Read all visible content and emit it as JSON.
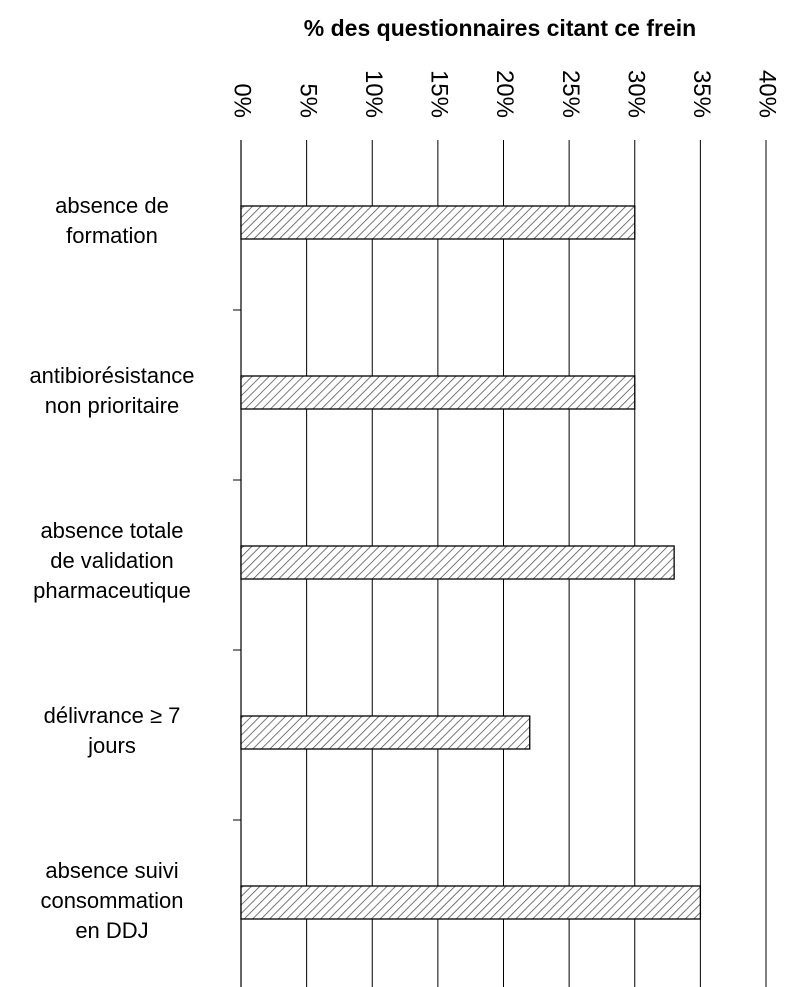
{
  "chart_data": {
    "type": "barh",
    "title": "% des questionnaires citant ce frein",
    "categories": [
      "absence de\nformation",
      "antibiorésistance\nnon prioritaire",
      "absence totale\nde validation\npharmaceutique",
      "délivrance ≥ 7\njours",
      "absence suivi\nconsommation\nen DDJ"
    ],
    "values": [
      30,
      30,
      33,
      22,
      35
    ],
    "color": "#000000",
    "xlim": [
      0,
      40
    ],
    "xticks": [
      {
        "value": 0,
        "label": "0%"
      },
      {
        "value": 5,
        "label": "5%"
      },
      {
        "value": 10,
        "label": "10%"
      },
      {
        "value": 15,
        "label": "15%"
      },
      {
        "value": 20,
        "label": "20%"
      },
      {
        "value": 25,
        "label": "25%"
      },
      {
        "value": 30,
        "label": "30%"
      },
      {
        "value": 35,
        "label": "35%"
      },
      {
        "value": 40,
        "label": "40%"
      }
    ],
    "grid": true
  }
}
